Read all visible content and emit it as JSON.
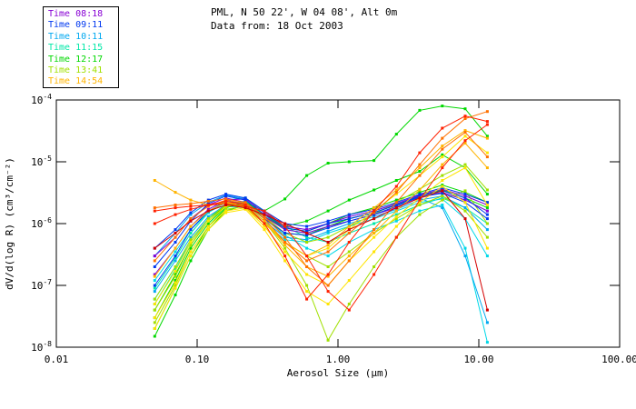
{
  "header": {
    "title": "PML, N 50 22', W 04 08', Alt 0m",
    "subtitle": "Data from: 18 Oct 2003"
  },
  "chart_data": {
    "type": "line",
    "title": "PML, N 50 22', W 04 08', Alt 0m",
    "subtitle": "Data from: 18 Oct 2003",
    "xlabel": "Aerosol Size (μm)",
    "ylabel": "dV/d(log R) (cm³/cm⁻²)",
    "xscale": "log",
    "yscale": "log",
    "xlim": [
      0.01,
      100
    ],
    "ylim": [
      1e-08,
      0.0001
    ],
    "grid": false,
    "legend_position": "top-left",
    "x_tick_labels": [
      "0.01",
      "0.10",
      "1.00",
      "10.00",
      "100.00"
    ],
    "x_tick_values": [
      0.01,
      0.1,
      1,
      10,
      100
    ],
    "y_tick_exponents": [
      -4,
      -5,
      -6,
      -7,
      -8
    ],
    "legend": [
      {
        "label": "Time 08:18",
        "color": "#8800D4"
      },
      {
        "label": "Time 09:11",
        "color": "#0038F0"
      },
      {
        "label": "Time 10:11",
        "color": "#00A8F0"
      },
      {
        "label": "Time 11:15",
        "color": "#00E8A8"
      },
      {
        "label": "Time 12:17",
        "color": "#00D800"
      },
      {
        "label": "Time 13:41",
        "color": "#A0E000"
      },
      {
        "label": "Time 14:54",
        "color": "#FFB400"
      }
    ],
    "sizes": [
      0.05,
      0.07,
      0.09,
      0.12,
      0.16,
      0.22,
      0.3,
      0.42,
      0.6,
      0.85,
      1.2,
      1.8,
      2.6,
      3.8,
      5.5,
      8.0,
      11.5
    ],
    "series": [
      {
        "color": "#00E8A8",
        "values": [
          5e-08,
          1.8e-07,
          5e-07,
          1.2e-06,
          2.1e-06,
          2.3e-06,
          1.4e-06,
          8e-07,
          7e-07,
          9e-07,
          1.2e-06,
          1.5e-06,
          2e-06,
          2.7e-06,
          3.2e-06,
          2.4e-06,
          1.6e-06
        ]
      },
      {
        "color": "#00E8A8",
        "values": [
          9e-08,
          2.8e-07,
          7e-07,
          1.5e-06,
          2.4e-06,
          2.6e-06,
          1.6e-06,
          9e-07,
          6e-07,
          5e-07,
          7e-07,
          1e-06,
          1.4e-06,
          2e-06,
          2.6e-06,
          1.8e-06,
          1e-06
        ]
      },
      {
        "color": "#00D8E8",
        "values": [
          6e-08,
          2e-07,
          5e-07,
          1.2e-06,
          1.9e-06,
          1.8e-06,
          1e-06,
          5.5e-07,
          5e-07,
          7e-07,
          9e-07,
          1.2e-06,
          1.6e-06,
          2.2e-06,
          2.5e-06,
          1.2e-06,
          3e-07
        ]
      },
      {
        "color": "#00D8E8",
        "values": [
          1.2e-07,
          3.5e-07,
          8e-07,
          1.5e-06,
          2.2e-06,
          2e-06,
          1.2e-06,
          6.5e-07,
          4e-07,
          3e-07,
          5e-07,
          8e-07,
          1.1e-06,
          1.6e-06,
          2e-06,
          4e-07,
          1.2e-08
        ]
      },
      {
        "color": "#00A8F0",
        "values": [
          8e-08,
          2.5e-07,
          6e-07,
          1.3e-06,
          2e-06,
          1.9e-06,
          1.1e-06,
          6e-07,
          5.5e-07,
          7.5e-07,
          1e-06,
          1.3e-06,
          1.7e-06,
          2.4e-06,
          2.8e-06,
          1.8e-06,
          8e-07
        ]
      },
      {
        "color": "#00A8F0",
        "values": [
          3e-07,
          7e-07,
          1.4e-06,
          2.2e-06,
          2.9e-06,
          2.5e-06,
          1.5e-06,
          9e-07,
          8e-07,
          1e-06,
          1.3e-06,
          1.6e-06,
          2.1e-06,
          2.6e-06,
          1.8e-06,
          3e-07,
          2.5e-08
        ]
      },
      {
        "color": "#00D800",
        "values": [
          3e-08,
          1.2e-07,
          4e-07,
          1e-06,
          1.9e-06,
          2.1e-06,
          1.2e-06,
          7e-07,
          6.5e-07,
          9e-07,
          1.2e-06,
          1.5e-06,
          2e-06,
          2.8e-06,
          3.5e-06,
          2.6e-06,
          1.8e-06
        ]
      },
      {
        "color": "#00D800",
        "values": [
          1.5e-08,
          7e-08,
          2.5e-07,
          8e-07,
          1.6e-06,
          2e-06,
          1.3e-06,
          8.5e-07,
          7.5e-07,
          1e-06,
          1.4e-06,
          1.8e-06,
          2.4e-06,
          3.2e-06,
          4.2e-06,
          3.2e-06,
          2.2e-06
        ]
      },
      {
        "color": "#00D800",
        "values": [
          4e-08,
          1.5e-07,
          4.5e-07,
          1.1e-06,
          2e-06,
          2.2e-06,
          1.6e-06,
          2.5e-06,
          6e-06,
          9.5e-06,
          1e-05,
          1.05e-05,
          2.8e-05,
          6.8e-05,
          8e-05,
          7.2e-05,
          2.6e-05
        ]
      },
      {
        "color": "#00D800",
        "values": [
          2e-08,
          9e-08,
          3e-07,
          9e-07,
          1.8e-06,
          2.2e-06,
          1.4e-06,
          9e-07,
          1.1e-06,
          1.6e-06,
          2.4e-06,
          3.5e-06,
          5e-06,
          7e-06,
          1.3e-05,
          8e-06,
          3e-06
        ]
      },
      {
        "color": "#A0E000",
        "values": [
          2.5e-08,
          1e-07,
          3.5e-07,
          9e-07,
          1.7e-06,
          1.9e-06,
          1e-06,
          5e-07,
          3e-07,
          2e-07,
          3.5e-07,
          7e-07,
          1.2e-06,
          2e-06,
          2.8e-06,
          1.6e-06,
          6e-07
        ]
      },
      {
        "color": "#A0E000",
        "values": [
          4e-08,
          1.4e-07,
          4.5e-07,
          1.1e-06,
          1.9e-06,
          2e-06,
          1.1e-06,
          4e-07,
          1e-07,
          1.3e-08,
          5e-08,
          2e-07,
          6e-07,
          1.4e-06,
          2.4e-06,
          3.4e-06,
          1e-06
        ]
      },
      {
        "color": "#A0E000",
        "values": [
          6e-08,
          2e-07,
          5.5e-07,
          1.2e-06,
          2e-06,
          2.2e-06,
          1.3e-06,
          7e-07,
          5e-07,
          6e-07,
          9e-07,
          1.4e-06,
          2.2e-06,
          3.6e-06,
          6e-06,
          9e-06,
          3.5e-06
        ]
      },
      {
        "color": "#8800D4",
        "values": [
          3e-07,
          6e-07,
          1.2e-06,
          2e-06,
          2.6e-06,
          2.2e-06,
          1.3e-06,
          8e-07,
          7e-07,
          9e-07,
          1.1e-06,
          1.4e-06,
          1.8e-06,
          2.6e-06,
          3.2e-06,
          2.4e-06,
          1.6e-06
        ]
      },
      {
        "color": "#8800D4",
        "values": [
          1.5e-07,
          4e-07,
          9e-07,
          1.7e-06,
          2.4e-06,
          2.5e-06,
          1.5e-06,
          9e-07,
          8e-07,
          1e-06,
          1.3e-06,
          1.6e-06,
          2.1e-06,
          2.9e-06,
          3.6e-06,
          2.8e-06,
          2e-06
        ]
      },
      {
        "color": "#0038F0",
        "values": [
          2e-07,
          5e-07,
          1.1e-06,
          2.1e-06,
          2.8e-06,
          2.4e-06,
          1.4e-06,
          8.5e-07,
          7.5e-07,
          1e-06,
          1.2e-06,
          1.5e-06,
          2e-06,
          2.8e-06,
          3.4e-06,
          2.6e-06,
          1.4e-06
        ]
      },
      {
        "color": "#0038F0",
        "values": [
          1e-07,
          3e-07,
          8e-07,
          1.6e-06,
          2.3e-06,
          2.1e-06,
          1.2e-06,
          7e-07,
          6.5e-07,
          8.5e-07,
          1.1e-06,
          1.4e-06,
          1.9e-06,
          2.7e-06,
          3.1e-06,
          2.2e-06,
          1.2e-06
        ]
      },
      {
        "color": "#0038F0",
        "values": [
          4e-07,
          8e-07,
          1.5e-06,
          2.4e-06,
          3e-06,
          2.6e-06,
          1.6e-06,
          1e-06,
          9e-07,
          1.1e-06,
          1.4e-06,
          1.7e-06,
          2.2e-06,
          3e-06,
          3.8e-06,
          3e-06,
          2.2e-06
        ]
      },
      {
        "color": "#FFE400",
        "values": [
          3e-08,
          1.1e-07,
          3.5e-07,
          9e-07,
          1.6e-06,
          1.8e-06,
          9e-07,
          3.5e-07,
          1.5e-07,
          1e-07,
          2.5e-07,
          6e-07,
          1.3e-06,
          2.6e-06,
          5e-06,
          8e-06,
          2e-06
        ]
      },
      {
        "color": "#FFE400",
        "values": [
          5e-08,
          1.7e-07,
          5e-07,
          1.1e-06,
          1.9e-06,
          2e-06,
          1.1e-06,
          5e-07,
          3e-07,
          4e-07,
          8e-07,
          1.6e-06,
          3e-06,
          6e-06,
          1.2e-05,
          2.6e-05,
          1.4e-05
        ]
      },
      {
        "color": "#FFE400",
        "values": [
          2e-08,
          9e-08,
          3e-07,
          8e-07,
          1.5e-06,
          1.7e-06,
          8e-07,
          2.5e-07,
          8e-08,
          5e-08,
          1.2e-07,
          3.5e-07,
          9e-07,
          2.2e-06,
          4e-06,
          2.2e-06,
          4e-07
        ]
      },
      {
        "color": "#FFB400",
        "values": [
          5e-06,
          3.2e-06,
          2.4e-06,
          2e-06,
          2.2e-06,
          1.8e-06,
          1e-06,
          5e-07,
          3e-07,
          4.5e-07,
          9e-07,
          1.8e-06,
          3.5e-06,
          8e-06,
          1.8e-05,
          3.2e-05,
          2.4e-05
        ]
      },
      {
        "color": "#FFB400",
        "values": [
          1.4e-07,
          4e-07,
          9e-07,
          1.6e-06,
          2.2e-06,
          2e-06,
          1.1e-06,
          4.5e-07,
          2e-07,
          1.4e-07,
          3e-07,
          7e-07,
          1.6e-06,
          3.5e-06,
          9e-06,
          2e-05,
          8e-06
        ]
      },
      {
        "color": "#FF7000",
        "values": [
          2.5e-07,
          6e-07,
          1.2e-06,
          1.9e-06,
          2.4e-06,
          2.1e-06,
          1.2e-06,
          5e-07,
          2.5e-07,
          3.5e-07,
          7e-07,
          1.5e-06,
          3.2e-06,
          9e-06,
          2.4e-05,
          5e-05,
          6.5e-05
        ]
      },
      {
        "color": "#FF7000",
        "values": [
          1.8e-06,
          2e-06,
          2.1e-06,
          2.3e-06,
          2.5e-06,
          2.2e-06,
          1.3e-06,
          6e-07,
          2e-07,
          1e-07,
          2.5e-07,
          8e-07,
          2.2e-06,
          6e-06,
          1.6e-05,
          3e-05,
          1.2e-05
        ]
      },
      {
        "color": "#FF2000",
        "values": [
          1.6e-06,
          1.8e-06,
          1.9e-06,
          2e-06,
          2.1e-06,
          1.9e-06,
          1.6e-06,
          9e-07,
          3e-07,
          8e-08,
          4e-08,
          1.5e-07,
          6e-07,
          2.4e-06,
          8e-06,
          2.2e-05,
          4e-05
        ]
      },
      {
        "color": "#FF2000",
        "values": [
          1e-06,
          1.4e-06,
          1.7e-06,
          2e-06,
          2.3e-06,
          2e-06,
          1e-06,
          3e-07,
          6e-08,
          1.5e-07,
          5e-07,
          1.6e-06,
          4e-06,
          1.4e-05,
          3.5e-05,
          5.5e-05,
          4.5e-05
        ]
      },
      {
        "color": "#D40000",
        "values": [
          4e-07,
          7e-07,
          1.1e-06,
          1.6e-06,
          2e-06,
          1.8e-06,
          1.4e-06,
          1e-06,
          7e-07,
          5e-07,
          8e-07,
          1.2e-06,
          1.8e-06,
          2.6e-06,
          3.4e-06,
          1.2e-06,
          4e-08
        ]
      }
    ]
  }
}
